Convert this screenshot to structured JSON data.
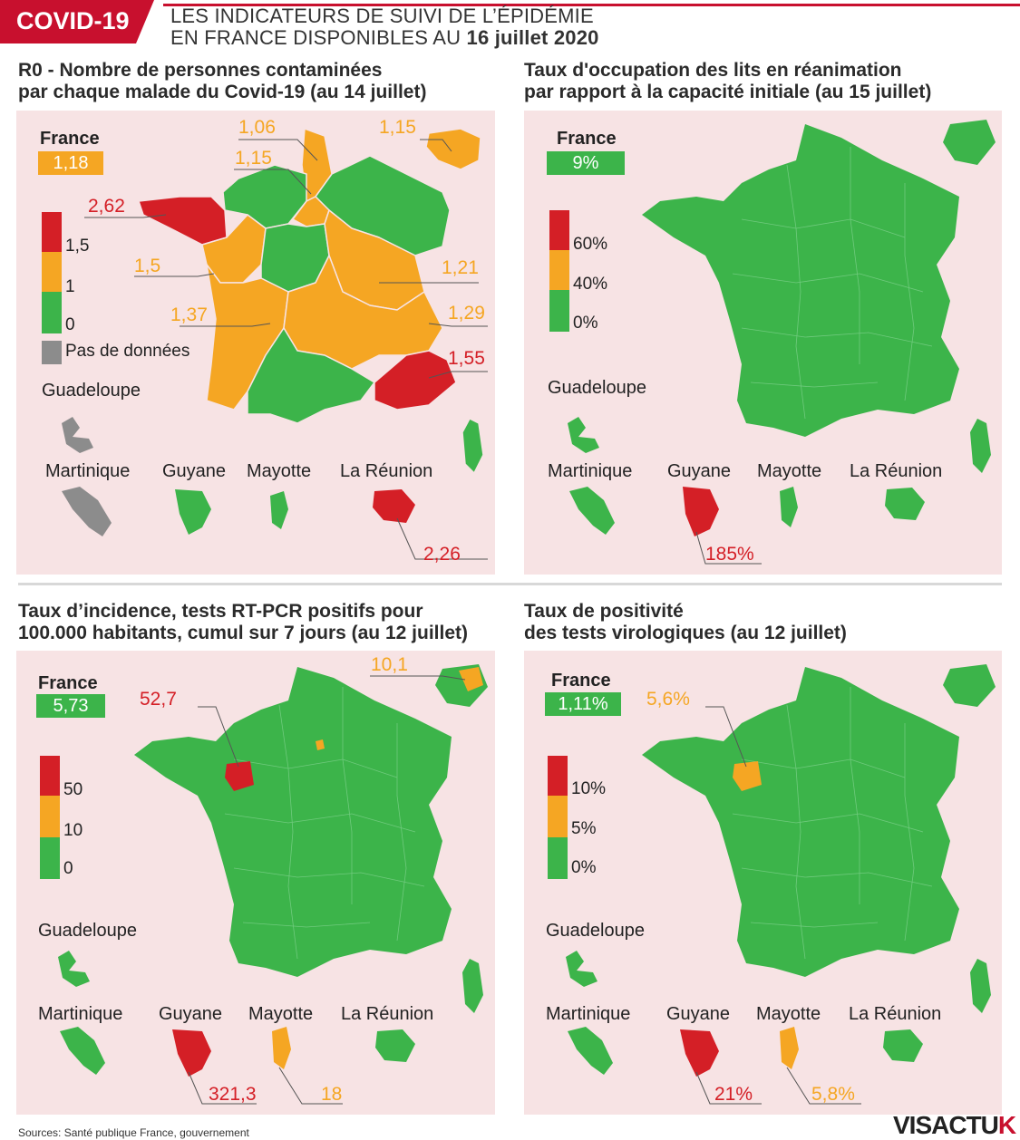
{
  "header": {
    "tag": "COVID-19",
    "line1": "LES INDICATEURS DE SUIVI DE L’ÉPIDÉMIE",
    "line2_prefix": "EN FRANCE DISPONIBLES AU ",
    "line2_date": "16 juillet 2020"
  },
  "colors": {
    "red": "#d41f26",
    "orange": "#f5a623",
    "green": "#3cb44a",
    "grey": "#8c8c8c",
    "panel": "#f7e3e4",
    "brand": "#c8102e"
  },
  "panels": [
    {
      "title1": "R0 - Nombre de personnes contaminées",
      "title2": "par chaque malade du Covid-19 (au 14 juillet)",
      "france_label": "France",
      "france_value": "1,18",
      "legend": [
        "1,5",
        "1",
        "0"
      ],
      "legend_extra": "Pas de données",
      "territories": [
        "Guadeloupe",
        "Martinique",
        "Guyane",
        "Mayotte",
        "La Réunion"
      ],
      "callouts": [
        "1,06",
        "1,15",
        "1,15",
        "2,62",
        "1,5",
        "1,21",
        "1,37",
        "1,29",
        "1,55",
        "2,26"
      ]
    },
    {
      "title1": "Taux d'occupation des lits en réanimation",
      "title2": "par rapport à la capacité initiale (au 15 juillet)",
      "france_label": "France",
      "france_value": "9%",
      "legend": [
        "60%",
        "40%",
        "0%"
      ],
      "territories": [
        "Guadeloupe",
        "Martinique",
        "Guyane",
        "Mayotte",
        "La Réunion"
      ],
      "callouts": [
        "185%"
      ]
    },
    {
      "title1": "Taux d’incidence, tests RT-PCR positifs pour",
      "title2": "100.000 habitants, cumul sur 7 jours (au 12 juillet)",
      "france_label": "France",
      "france_value": "5,73",
      "legend": [
        "50",
        "10",
        "0"
      ],
      "territories": [
        "Guadeloupe",
        "Martinique",
        "Guyane",
        "Mayotte",
        "La Réunion"
      ],
      "callouts": [
        "10,1",
        "52,7",
        "321,3",
        "18"
      ]
    },
    {
      "title1": "Taux de positivité",
      "title2": "des tests virologiques (au 12 juillet)",
      "france_label": "France",
      "france_value": "1,11%",
      "legend": [
        "10%",
        "5%",
        "0%"
      ],
      "territories": [
        "Guadeloupe",
        "Martinique",
        "Guyane",
        "Mayotte",
        "La Réunion"
      ],
      "callouts": [
        "5,6%",
        "21%",
        "5,8%"
      ]
    }
  ],
  "footer": "Sources: Santé publique France, gouvernement",
  "brand": {
    "part1": "VISACTU",
    "part2": "K"
  }
}
